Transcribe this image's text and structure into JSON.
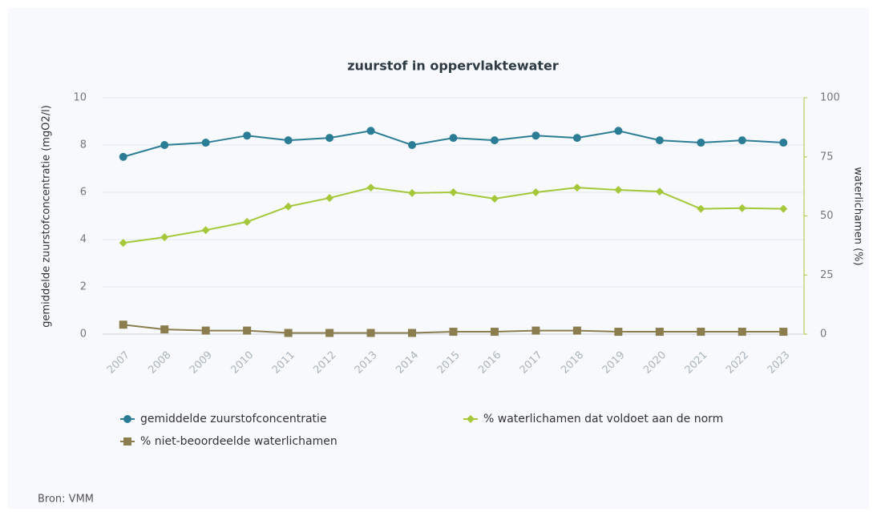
{
  "chart_data": {
    "type": "line",
    "title": "zuurstof in oppervlaktewater",
    "categories": [
      "2007",
      "2008",
      "2009",
      "2010",
      "2011",
      "2012",
      "2013",
      "2014",
      "2015",
      "2016",
      "2017",
      "2018",
      "2019",
      "2020",
      "2021",
      "2022",
      "2023"
    ],
    "ylabel": "gemiddelde zuurstofconcentratie (mgO2/l)",
    "y2label": "waterlichamen (%)",
    "ylim": [
      0,
      10
    ],
    "yticks": [
      0,
      2,
      4,
      6,
      8,
      10
    ],
    "y2lim": [
      0,
      100
    ],
    "y2ticks": [
      0,
      25,
      50,
      75,
      100
    ],
    "grid": true,
    "series": [
      {
        "name": "gemiddelde zuurstofconcentratie",
        "color": "#2b7d96",
        "marker": "circle",
        "values": [
          7.5,
          8.0,
          8.1,
          8.4,
          8.2,
          8.3,
          8.6,
          8.0,
          8.3,
          8.2,
          8.4,
          8.3,
          8.6,
          8.2,
          8.1,
          8.2,
          8.1
        ]
      },
      {
        "name": "% waterlichamen dat voldoet aan de norm",
        "color": "#a5c83a",
        "marker": "diamond",
        "axis": "y2",
        "values": [
          38.6,
          41,
          44,
          47.5,
          54,
          57.6,
          62,
          59.7,
          60,
          57.3,
          60,
          62,
          61,
          60.3,
          53,
          53.3,
          53
        ]
      },
      {
        "name": "% niet-beoordeelde waterlichamen",
        "color": "#8c7d4e",
        "marker": "square",
        "axis": "y2",
        "values": [
          4,
          2,
          1.5,
          1.5,
          0.5,
          0.5,
          0.5,
          0.5,
          1,
          1,
          1.5,
          1.5,
          1,
          1,
          1,
          1,
          1
        ]
      }
    ],
    "source": "Bron: VMM"
  }
}
